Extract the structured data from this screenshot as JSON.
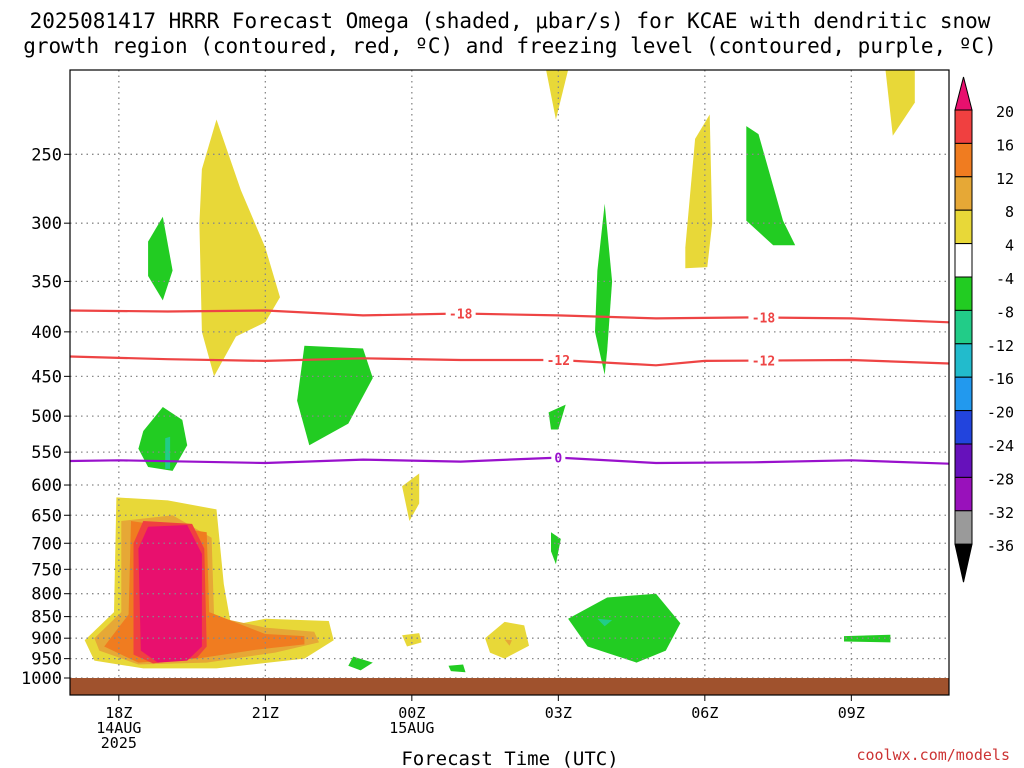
{
  "title": {
    "line1": "2025081417 HRRR Forecast Omega (shaded, μbar/s) for KCAE with dendritic snow",
    "line2": "growth region (contoured, red, ºC) and freezing level (contoured, purple, ºC)"
  },
  "credit": "coolwx.com/models",
  "chart_data": {
    "type": "time-height",
    "xlabel": "Forecast Time (UTC)",
    "ylabel": "",
    "x_ticks": [
      {
        "hour": 0,
        "lines": [
          "18Z",
          "14AUG",
          "2025"
        ]
      },
      {
        "hour": 3,
        "lines": [
          "21Z"
        ]
      },
      {
        "hour": 6,
        "lines": [
          "00Z",
          "15AUG"
        ]
      },
      {
        "hour": 9,
        "lines": [
          "03Z"
        ]
      },
      {
        "hour": 12,
        "lines": [
          "06Z"
        ]
      },
      {
        "hour": 15,
        "lines": [
          "09Z"
        ]
      }
    ],
    "xlim": [
      -1,
      17
    ],
    "y_ticks": [
      250,
      300,
      350,
      400,
      450,
      500,
      550,
      600,
      650,
      700,
      750,
      800,
      850,
      900,
      950,
      1000
    ],
    "ylim_hpa": [
      200,
      1000
    ],
    "y_scale": "log",
    "grid": true,
    "omega_levels": [
      "20",
      "16",
      "12",
      "8",
      "4",
      "-4",
      "-8",
      "-12",
      "-16",
      "-20",
      "-24",
      "-28",
      "-32",
      "-36"
    ],
    "colorbar_colors": [
      "#e8106e",
      "#f04040",
      "#f07c20",
      "#e6a836",
      "#e8d838",
      "#ffffff",
      "#22cc22",
      "#22cc88",
      "#22bbcc",
      "#2299ee",
      "#2244dd",
      "#6611bb",
      "#9911bb",
      "#9a9a9a",
      "#000000"
    ],
    "contours": [
      {
        "name": "-18",
        "color": "#ee4444",
        "label": "-18",
        "points": [
          [
            -1,
            378
          ],
          [
            1,
            379
          ],
          [
            3,
            378
          ],
          [
            5,
            383
          ],
          [
            7,
            381
          ],
          [
            9,
            383
          ],
          [
            11,
            386
          ],
          [
            13,
            385
          ],
          [
            15,
            386
          ],
          [
            17,
            390
          ]
        ],
        "label_hours": [
          7,
          13.2
        ]
      },
      {
        "name": "-12",
        "color": "#ee4444",
        "label": "-12",
        "points": [
          [
            -1,
            427
          ],
          [
            1,
            430
          ],
          [
            3,
            432
          ],
          [
            5,
            429
          ],
          [
            7,
            431
          ],
          [
            9,
            431
          ],
          [
            11,
            437
          ],
          [
            12,
            432
          ],
          [
            15,
            431
          ],
          [
            17,
            435
          ]
        ],
        "label_hours": [
          9,
          13.2
        ]
      },
      {
        "name": "0",
        "color": "#9911cc",
        "label": "0",
        "points": [
          [
            -1,
            563
          ],
          [
            0,
            562
          ],
          [
            3,
            566
          ],
          [
            5,
            561
          ],
          [
            7,
            564
          ],
          [
            9,
            558
          ],
          [
            11,
            566
          ],
          [
            13,
            565
          ],
          [
            15,
            562
          ],
          [
            17,
            567
          ]
        ],
        "label_hours": [
          9
        ]
      }
    ],
    "omega_regions": [
      {
        "value": 4,
        "color": "#e8d838",
        "points": [
          [
            -0.05,
            620
          ],
          [
            1,
            625
          ],
          [
            2,
            640
          ],
          [
            2.15,
            780
          ],
          [
            2.3,
            870
          ],
          [
            3,
            855
          ],
          [
            4.3,
            860
          ],
          [
            4.4,
            905
          ],
          [
            3.8,
            950
          ],
          [
            2,
            975
          ],
          [
            0.5,
            975
          ],
          [
            -0.5,
            955
          ],
          [
            -0.7,
            905
          ],
          [
            -0.1,
            840
          ]
        ]
      },
      {
        "value": 8,
        "color": "#e6a836",
        "points": [
          [
            0.05,
            660
          ],
          [
            1.1,
            650
          ],
          [
            1.9,
            690
          ],
          [
            1.95,
            850
          ],
          [
            3,
            875
          ],
          [
            4,
            885
          ],
          [
            4.1,
            910
          ],
          [
            3.2,
            935
          ],
          [
            1.8,
            960
          ],
          [
            0.4,
            965
          ],
          [
            -0.4,
            930
          ],
          [
            -0.5,
            900
          ],
          [
            0.05,
            840
          ]
        ]
      },
      {
        "value": 12,
        "color": "#f07c20",
        "points": [
          [
            0.25,
            660
          ],
          [
            1.8,
            680
          ],
          [
            1.85,
            840
          ],
          [
            3,
            890
          ],
          [
            3.8,
            895
          ],
          [
            3.8,
            915
          ],
          [
            2.8,
            928
          ],
          [
            1.6,
            950
          ],
          [
            0.4,
            960
          ],
          [
            -0.3,
            920
          ],
          [
            0.2,
            845
          ]
        ]
      },
      {
        "value": 16,
        "color": "#f04040",
        "points": [
          [
            0.5,
            660
          ],
          [
            1.5,
            665
          ],
          [
            1.75,
            710
          ],
          [
            1.8,
            920
          ],
          [
            1.6,
            948
          ],
          [
            0.7,
            962
          ],
          [
            0.3,
            940
          ],
          [
            0.3,
            700
          ]
        ]
      },
      {
        "value": 20,
        "color": "#e8106e",
        "points": [
          [
            0.6,
            670
          ],
          [
            1.4,
            667
          ],
          [
            1.7,
            720
          ],
          [
            1.7,
            920
          ],
          [
            1.4,
            955
          ],
          [
            0.8,
            960
          ],
          [
            0.45,
            930
          ],
          [
            0.4,
            710
          ]
        ]
      },
      {
        "value": 4,
        "color": "#e8d838",
        "points": [
          [
            1.7,
            260
          ],
          [
            2,
            228
          ],
          [
            2.5,
            275
          ],
          [
            3,
            320
          ],
          [
            3.3,
            365
          ],
          [
            3,
            390
          ],
          [
            2.4,
            405
          ],
          [
            1.95,
            450
          ],
          [
            1.7,
            400
          ],
          [
            1.65,
            300
          ]
        ]
      },
      {
        "value": -4,
        "color": "#22cc22",
        "points": [
          [
            0.6,
            315
          ],
          [
            0.9,
            295
          ],
          [
            1.1,
            340
          ],
          [
            0.9,
            368
          ],
          [
            0.6,
            345
          ]
        ]
      },
      {
        "value": -4,
        "color": "#22cc22",
        "points": [
          [
            3.8,
            415
          ],
          [
            5,
            418
          ],
          [
            5.2,
            452
          ],
          [
            4.7,
            510
          ],
          [
            3.9,
            540
          ],
          [
            3.65,
            480
          ]
        ]
      },
      {
        "value": -4,
        "color": "#22cc22",
        "points": [
          [
            0.5,
            520
          ],
          [
            0.9,
            488
          ],
          [
            1.3,
            505
          ],
          [
            1.4,
            540
          ],
          [
            1.1,
            578
          ],
          [
            0.6,
            572
          ],
          [
            0.4,
            545
          ]
        ]
      },
      {
        "value": -8,
        "color": "#22cc88",
        "points": [
          [
            0.95,
            530
          ],
          [
            1.05,
            528
          ],
          [
            1.05,
            575
          ],
          [
            0.95,
            575
          ]
        ]
      },
      {
        "value": 4,
        "color": "#e8d838",
        "points": [
          [
            5.8,
            602
          ],
          [
            6.15,
            582
          ],
          [
            6.15,
            630
          ],
          [
            5.95,
            660
          ]
        ]
      },
      {
        "value": -4,
        "color": "#22cc22",
        "points": [
          [
            4.8,
            945
          ],
          [
            5.2,
            960
          ],
          [
            4.95,
            980
          ],
          [
            4.7,
            968
          ]
        ]
      },
      {
        "value": 4,
        "color": "#e8d838",
        "points": [
          [
            5.8,
            893
          ],
          [
            6.15,
            888
          ],
          [
            6.2,
            910
          ],
          [
            5.9,
            920
          ]
        ]
      },
      {
        "value": -4,
        "color": "#22cc22",
        "points": [
          [
            6.75,
            968
          ],
          [
            7.05,
            965
          ],
          [
            7.1,
            985
          ],
          [
            6.8,
            982
          ]
        ]
      },
      {
        "value": 4,
        "color": "#e8d838",
        "points": [
          [
            7.5,
            900
          ],
          [
            7.9,
            862
          ],
          [
            8.3,
            870
          ],
          [
            8.4,
            918
          ],
          [
            7.9,
            950
          ],
          [
            7.6,
            935
          ]
        ]
      },
      {
        "value": 8,
        "color": "#e6a836",
        "points": [
          [
            7.9,
            903
          ],
          [
            8.05,
            905
          ],
          [
            8,
            918
          ]
        ]
      },
      {
        "value": 4,
        "color": "#e8d838",
        "points": [
          [
            8.75,
            200
          ],
          [
            9.2,
            200
          ],
          [
            8.95,
            228
          ]
        ]
      },
      {
        "value": -4,
        "color": "#22cc22",
        "points": [
          [
            8.8,
            495
          ],
          [
            9.15,
            485
          ],
          [
            9,
            518
          ],
          [
            8.85,
            518
          ]
        ]
      },
      {
        "value": -4,
        "color": "#22cc22",
        "points": [
          [
            8.85,
            680
          ],
          [
            9.05,
            692
          ],
          [
            8.95,
            740
          ],
          [
            8.85,
            715
          ]
        ]
      },
      {
        "value": -4,
        "color": "#22cc22",
        "points": [
          [
            9.8,
            340
          ],
          [
            9.95,
            285
          ],
          [
            10.1,
            350
          ],
          [
            10,
            420
          ],
          [
            9.95,
            448
          ],
          [
            9.75,
            400
          ]
        ]
      },
      {
        "value": -4,
        "color": "#22cc22",
        "points": [
          [
            9.2,
            855
          ],
          [
            10,
            808
          ],
          [
            11,
            800
          ],
          [
            11.5,
            865
          ],
          [
            11.2,
            930
          ],
          [
            10.6,
            960
          ],
          [
            9.6,
            920
          ]
        ]
      },
      {
        "value": -8,
        "color": "#22cc88",
        "points": [
          [
            9.8,
            855
          ],
          [
            10.1,
            858
          ],
          [
            9.95,
            872
          ]
        ]
      },
      {
        "value": 4,
        "color": "#e8d838",
        "points": [
          [
            11.6,
            320
          ],
          [
            11.8,
            240
          ],
          [
            12.1,
            225
          ],
          [
            12.15,
            300
          ],
          [
            12.05,
            337
          ],
          [
            11.6,
            338
          ]
        ]
      },
      {
        "value": -4,
        "color": "#22cc22",
        "points": [
          [
            12.85,
            232
          ],
          [
            13.1,
            237
          ],
          [
            13.6,
            298
          ],
          [
            13.85,
            318
          ],
          [
            13.4,
            318
          ],
          [
            12.85,
            298
          ]
        ]
      },
      {
        "value": -4,
        "color": "#22cc22",
        "points": [
          [
            14.85,
            895
          ],
          [
            15.8,
            892
          ],
          [
            15.8,
            910
          ],
          [
            14.85,
            908
          ]
        ]
      },
      {
        "value": 4,
        "color": "#e8d838",
        "points": [
          [
            15.7,
            200
          ],
          [
            16.3,
            200
          ],
          [
            16.3,
            218
          ],
          [
            15.85,
            238
          ]
        ]
      }
    ]
  }
}
